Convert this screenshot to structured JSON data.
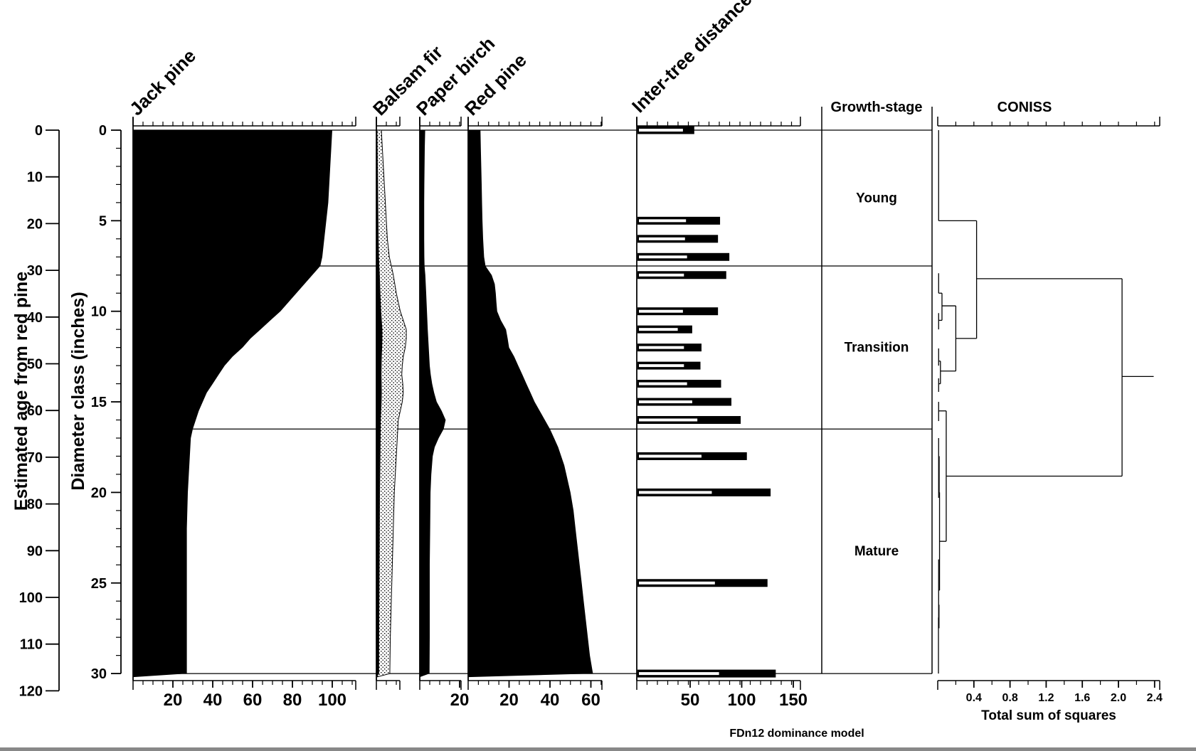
{
  "colors": {
    "ink": "#000000",
    "paper": "#ffffff"
  },
  "footnote": "FDn12 dominance model",
  "axes": {
    "age": {
      "title": "Estimated age from red pine",
      "ticks": [
        0,
        10,
        20,
        30,
        40,
        50,
        60,
        70,
        80,
        90,
        100,
        110,
        120
      ]
    },
    "diameter": {
      "title": "Diameter class (inches)",
      "major_ticks": [
        0,
        5,
        10,
        15,
        20,
        25,
        30
      ],
      "minor_step": 1,
      "max": 30
    }
  },
  "growth_stage_panel": {
    "title": "Growth-stage"
  },
  "coniss_panel": {
    "title": "CONISS",
    "xlabel": "Total sum of squares",
    "tick_labels": [
      "0.4",
      "0.8",
      "1.2",
      "1.6",
      "2.0",
      "2.4"
    ],
    "tick_values": [
      0.4,
      0.8,
      1.2,
      1.6,
      2.0,
      2.4
    ]
  },
  "chart_data": {
    "type": "area",
    "subtype": "stratigraphic-dominance-diagram",
    "depth_axis": {
      "label": "Diameter class (inches)",
      "range": [
        0,
        30
      ],
      "orientation": "vertical-down"
    },
    "secondary_depth_axis": {
      "label": "Estimated age from red pine",
      "range": [
        0,
        120
      ]
    },
    "panels": [
      {
        "name": "Jack pine",
        "unit": "percent dominance",
        "xlim": [
          0,
          110
        ],
        "tick_labels": [
          20,
          40,
          60,
          80,
          100
        ],
        "curve": [
          [
            0,
            100
          ],
          [
            1,
            99.5
          ],
          [
            2,
            99
          ],
          [
            3,
            98.5
          ],
          [
            4,
            98
          ],
          [
            5,
            97
          ],
          [
            6,
            96
          ],
          [
            7,
            95
          ],
          [
            7.5,
            94
          ],
          [
            8,
            90
          ],
          [
            8.5,
            86
          ],
          [
            9,
            82
          ],
          [
            9.5,
            78
          ],
          [
            10,
            74
          ],
          [
            10.5,
            69
          ],
          [
            11,
            64
          ],
          [
            11.5,
            59
          ],
          [
            12,
            55
          ],
          [
            12.5,
            50
          ],
          [
            13,
            46
          ],
          [
            13.5,
            43
          ],
          [
            14,
            40
          ],
          [
            14.5,
            37
          ],
          [
            15,
            35
          ],
          [
            15.5,
            33
          ],
          [
            16,
            31.5
          ],
          [
            16.5,
            30
          ],
          [
            17,
            29
          ],
          [
            18,
            28.5
          ],
          [
            19,
            28
          ],
          [
            20,
            27.5
          ],
          [
            22,
            27
          ],
          [
            24,
            27
          ],
          [
            26,
            27
          ],
          [
            28,
            27
          ],
          [
            30,
            27
          ]
        ]
      },
      {
        "name": "Balsam fir",
        "unit": "percent dominance",
        "xlim": [
          0,
          12
        ],
        "tick_labels": [],
        "exaggeration_factor": 5,
        "curve": [
          [
            0,
            0.5
          ],
          [
            2,
            0.7
          ],
          [
            4,
            0.9
          ],
          [
            6,
            1.1
          ],
          [
            7,
            1.3
          ],
          [
            7.5,
            1.5
          ],
          [
            8,
            1.7
          ],
          [
            9,
            2
          ],
          [
            10,
            2.4
          ],
          [
            10.5,
            2.7
          ],
          [
            11,
            3
          ],
          [
            11.5,
            3
          ],
          [
            12,
            2.9
          ],
          [
            12.5,
            2.7
          ],
          [
            13,
            2.6
          ],
          [
            13.5,
            2.55
          ],
          [
            14,
            2.65
          ],
          [
            14.5,
            2.7
          ],
          [
            15,
            2.6
          ],
          [
            15.5,
            2.4
          ],
          [
            16,
            2.2
          ],
          [
            17,
            2.1
          ],
          [
            18,
            2
          ],
          [
            20,
            1.8
          ],
          [
            22,
            1.7
          ],
          [
            24,
            1.6
          ],
          [
            26,
            1.5
          ],
          [
            28,
            1.4
          ],
          [
            30,
            1.35
          ]
        ]
      },
      {
        "name": "Paper birch",
        "unit": "percent dominance",
        "xlim": [
          0,
          21
        ],
        "tick_labels": [
          20
        ],
        "curve": [
          [
            0,
            2.7
          ],
          [
            1,
            2.5
          ],
          [
            2,
            2.4
          ],
          [
            3,
            2.3
          ],
          [
            4,
            2.2
          ],
          [
            5,
            2.2
          ],
          [
            6,
            2.2
          ],
          [
            7,
            2.3
          ],
          [
            7.5,
            2.4
          ],
          [
            8,
            2.8
          ],
          [
            9,
            3.2
          ],
          [
            10,
            3.6
          ],
          [
            11,
            4
          ],
          [
            12,
            4.5
          ],
          [
            13,
            5
          ],
          [
            13.5,
            5.5
          ],
          [
            14,
            6.2
          ],
          [
            14.5,
            7.2
          ],
          [
            15,
            8.5
          ],
          [
            15.5,
            11
          ],
          [
            16,
            13
          ],
          [
            16.5,
            12
          ],
          [
            17,
            9.5
          ],
          [
            17.5,
            7.5
          ],
          [
            18,
            6.5
          ],
          [
            19,
            5.8
          ],
          [
            20,
            5.4
          ],
          [
            22,
            5.2
          ],
          [
            24,
            5
          ],
          [
            26,
            5
          ],
          [
            28,
            5
          ],
          [
            30,
            4.9
          ]
        ]
      },
      {
        "name": "Red pine",
        "unit": "percent dominance",
        "xlim": [
          0,
          65
        ],
        "tick_labels": [
          20,
          40,
          60
        ],
        "curve": [
          [
            0,
            6
          ],
          [
            1,
            6.2
          ],
          [
            2,
            6.4
          ],
          [
            3,
            6.6
          ],
          [
            4,
            6.8
          ],
          [
            5,
            7
          ],
          [
            6,
            7.3
          ],
          [
            7,
            7.8
          ],
          [
            7.5,
            8.5
          ],
          [
            8,
            11.5
          ],
          [
            8.5,
            13
          ],
          [
            9,
            13.5
          ],
          [
            9.5,
            13.8
          ],
          [
            10,
            14.2
          ],
          [
            10.5,
            16
          ],
          [
            11,
            18.5
          ],
          [
            11.5,
            19.3
          ],
          [
            12,
            20
          ],
          [
            12.5,
            22.5
          ],
          [
            13,
            24.5
          ],
          [
            13.5,
            26.5
          ],
          [
            14,
            28.5
          ],
          [
            14.5,
            30.5
          ],
          [
            15,
            32.5
          ],
          [
            15.5,
            35
          ],
          [
            16,
            37.5
          ],
          [
            16.5,
            40
          ],
          [
            17,
            42
          ],
          [
            17.5,
            44
          ],
          [
            18,
            45.5
          ],
          [
            18.5,
            47
          ],
          [
            19,
            48
          ],
          [
            19.5,
            49
          ],
          [
            20,
            50
          ],
          [
            21,
            51.5
          ],
          [
            22,
            52.5
          ],
          [
            23,
            53.5
          ],
          [
            24,
            54.5
          ],
          [
            25,
            55.5
          ],
          [
            26,
            56.5
          ],
          [
            27,
            57.5
          ],
          [
            28,
            58.5
          ],
          [
            29,
            59.5
          ],
          [
            30,
            61
          ]
        ]
      },
      {
        "name": "Inter-tree distance",
        "type": "paired-bars",
        "xlim": [
          0,
          157
        ],
        "tick_labels": [
          50,
          100,
          150
        ],
        "bars": [
          {
            "diameter_class": 0,
            "inner": 43,
            "outer": 54
          },
          {
            "diameter_class": 5,
            "inner": 46,
            "outer": 79
          },
          {
            "diameter_class": 6,
            "inner": 45,
            "outer": 77
          },
          {
            "diameter_class": 7,
            "inner": 47,
            "outer": 88
          },
          {
            "diameter_class": 8,
            "inner": 44,
            "outer": 85
          },
          {
            "diameter_class": 10,
            "inner": 43,
            "outer": 77
          },
          {
            "diameter_class": 11,
            "inner": 38,
            "outer": 52
          },
          {
            "diameter_class": 12,
            "inner": 44,
            "outer": 61
          },
          {
            "diameter_class": 13,
            "inner": 44,
            "outer": 60
          },
          {
            "diameter_class": 14,
            "inner": 47,
            "outer": 80
          },
          {
            "diameter_class": 15,
            "inner": 52,
            "outer": 90
          },
          {
            "diameter_class": 16,
            "inner": 57,
            "outer": 99
          },
          {
            "diameter_class": 18,
            "inner": 61,
            "outer": 105
          },
          {
            "diameter_class": 20,
            "inner": 71,
            "outer": 128
          },
          {
            "diameter_class": 25,
            "inner": 74,
            "outer": 125
          },
          {
            "diameter_class": 30,
            "inner": 78,
            "outer": 133
          }
        ]
      }
    ],
    "growth_stages": [
      {
        "label": "Young",
        "from_diameter": 0,
        "to_diameter": 7.5
      },
      {
        "label": "Transition",
        "from_diameter": 7.5,
        "to_diameter": 16.5
      },
      {
        "label": "Mature",
        "from_diameter": 16.5,
        "to_diameter": 30
      }
    ],
    "zone_boundaries_diameter": [
      0,
      7.5,
      16.5,
      30
    ],
    "coniss": {
      "title": "CONISS",
      "xlabel": "Total sum of squares",
      "xlim": [
        0,
        2.46
      ],
      "dendrogram_segments": [
        [
          0.01,
          0,
          0.01,
          5.0
        ],
        [
          0.01,
          5.0,
          0.43,
          5.0
        ],
        [
          0.43,
          5.0,
          0.43,
          11.5
        ],
        [
          0.43,
          8.2,
          2.04,
          8.2
        ],
        [
          2.04,
          8.2,
          2.04,
          19.1
        ],
        [
          2.04,
          13.6,
          2.39,
          13.6
        ],
        [
          0.01,
          7.9,
          0.01,
          9.0
        ],
        [
          0.01,
          9.0,
          0.047,
          9.0
        ],
        [
          0.047,
          9.0,
          0.047,
          10.5
        ],
        [
          0.01,
          10.5,
          0.047,
          10.5
        ],
        [
          0.01,
          10.1,
          0.01,
          11.0
        ],
        [
          0.047,
          9.7,
          0.2,
          9.7
        ],
        [
          0.2,
          9.7,
          0.2,
          13.3
        ],
        [
          0.2,
          11.5,
          0.43,
          11.5
        ],
        [
          0.01,
          12.05,
          0.01,
          13.0
        ],
        [
          0.01,
          12.75,
          0.03,
          12.75
        ],
        [
          0.03,
          12.75,
          0.03,
          14.0
        ],
        [
          0.01,
          14.0,
          0.03,
          14.0
        ],
        [
          0.01,
          13.7,
          0.01,
          14.45
        ],
        [
          0.03,
          13.3,
          0.2,
          13.3
        ],
        [
          0.01,
          15.0,
          0.01,
          16.06
        ],
        [
          0.01,
          15.5,
          0.094,
          15.5
        ],
        [
          0.094,
          15.5,
          0.094,
          22.7
        ],
        [
          0.094,
          19.1,
          2.04,
          19.1
        ],
        [
          0.02,
          22.7,
          0.094,
          22.7
        ],
        [
          0.02,
          20.0,
          0.02,
          25.4
        ],
        [
          0.01,
          20.0,
          0.02,
          20.0
        ],
        [
          0.01,
          17.0,
          0.01,
          20.3
        ],
        [
          0.016,
          18.0,
          0.016,
          20.0
        ],
        [
          0.01,
          25.4,
          0.02,
          25.4
        ],
        [
          0.01,
          23.7,
          0.01,
          26.9
        ],
        [
          0.014,
          26.2,
          0.014,
          27.5
        ],
        [
          0.01,
          26.9,
          0.008,
          26.9
        ],
        [
          0.008,
          26.9,
          0.008,
          30.0
        ]
      ]
    }
  }
}
